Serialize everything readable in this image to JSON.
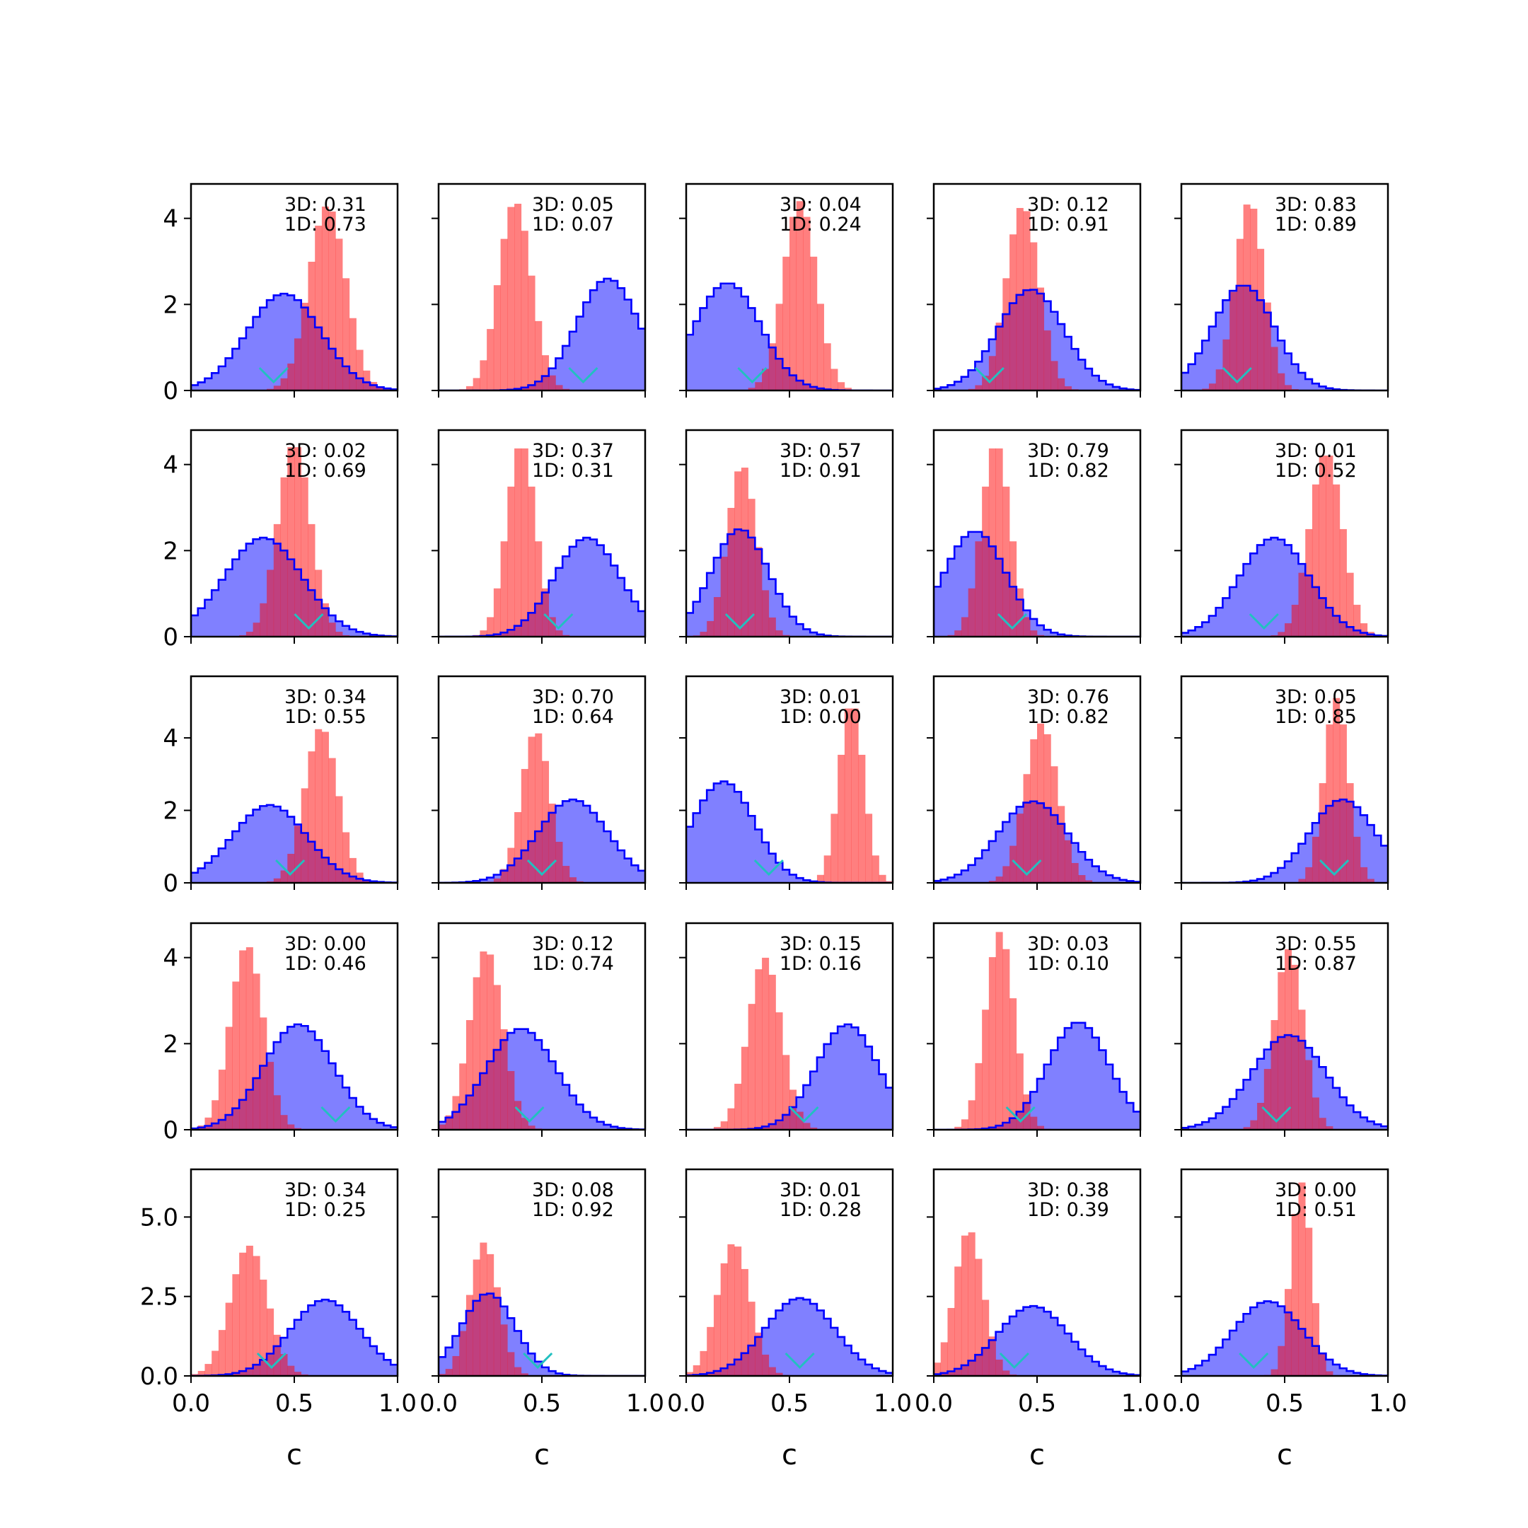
{
  "chart_data": {
    "type": "histogram-grid",
    "rows": 5,
    "cols": 5,
    "xlabel": "c",
    "xlim": [
      0.0,
      1.0
    ],
    "xticks": [
      0.0,
      0.5,
      1.0
    ],
    "xtick_labels": [
      "0.0",
      "0.5",
      "1.0"
    ],
    "row_yaxes": [
      {
        "ylim": [
          0,
          4.8
        ],
        "yticks": [
          0,
          2,
          4
        ],
        "ytick_labels": [
          "0",
          "2",
          "4"
        ]
      },
      {
        "ylim": [
          0,
          4.8
        ],
        "yticks": [
          0,
          2,
          4
        ],
        "ytick_labels": [
          "0",
          "2",
          "4"
        ]
      },
      {
        "ylim": [
          0,
          5.7
        ],
        "yticks": [
          0,
          2,
          4
        ],
        "ytick_labels": [
          "0",
          "2",
          "4"
        ]
      },
      {
        "ylim": [
          0,
          4.8
        ],
        "yticks": [
          0,
          2,
          4
        ],
        "ytick_labels": [
          "0",
          "2",
          "4"
        ]
      },
      {
        "ylim": [
          0,
          6.5
        ],
        "yticks": [
          0,
          2.5,
          5
        ],
        "ytick_labels": [
          "0.0",
          "2.5",
          "5.0"
        ]
      }
    ],
    "colors": {
      "blue_fill": "#8080ff",
      "blue_line": "#0000ff",
      "red_fill": "#ff8080",
      "marker": "#22c0c0"
    },
    "panels": [
      {
        "label3d": "3D: 0.31",
        "label1d": "1D: 0.73",
        "blue": {
          "mean": 0.45,
          "sd": 0.18,
          "peak": 2.25
        },
        "red": {
          "mean": 0.66,
          "sd": 0.09,
          "peak": 4.3
        },
        "marker": 0.4
      },
      {
        "label3d": "3D: 0.05",
        "label1d": "1D: 0.07",
        "blue": {
          "mean": 0.82,
          "sd": 0.15,
          "peak": 2.6
        },
        "red": {
          "mean": 0.37,
          "sd": 0.08,
          "peak": 4.4
        },
        "marker": 0.7
      },
      {
        "label3d": "3D: 0.04",
        "label1d": "1D: 0.24",
        "blue": {
          "mean": 0.2,
          "sd": 0.16,
          "peak": 2.5
        },
        "red": {
          "mean": 0.55,
          "sd": 0.08,
          "peak": 4.4
        },
        "marker": 0.32
      },
      {
        "label3d": "3D: 0.12",
        "label1d": "1D: 0.91",
        "blue": {
          "mean": 0.47,
          "sd": 0.16,
          "peak": 2.35
        },
        "red": {
          "mean": 0.43,
          "sd": 0.08,
          "peak": 4.3
        },
        "marker": 0.27
      },
      {
        "label3d": "3D: 0.83",
        "label1d": "1D: 0.89",
        "blue": {
          "mean": 0.3,
          "sd": 0.15,
          "peak": 2.45
        },
        "red": {
          "mean": 0.33,
          "sd": 0.07,
          "peak": 4.4
        },
        "marker": 0.27
      },
      {
        "label3d": "3D: 0.02",
        "label1d": "1D: 0.69",
        "blue": {
          "mean": 0.35,
          "sd": 0.19,
          "peak": 2.3
        },
        "red": {
          "mean": 0.5,
          "sd": 0.08,
          "peak": 4.5
        },
        "marker": 0.57
      },
      {
        "label3d": "3D: 0.37",
        "label1d": "1D: 0.31",
        "blue": {
          "mean": 0.72,
          "sd": 0.16,
          "peak": 2.3
        },
        "red": {
          "mean": 0.4,
          "sd": 0.07,
          "peak": 4.5
        },
        "marker": 0.58
      },
      {
        "label3d": "3D: 0.57",
        "label1d": "1D: 0.91",
        "blue": {
          "mean": 0.26,
          "sd": 0.14,
          "peak": 2.5
        },
        "red": {
          "mean": 0.27,
          "sd": 0.07,
          "peak": 4.0
        },
        "marker": 0.26
      },
      {
        "label3d": "3D: 0.79",
        "label1d": "1D: 0.82",
        "blue": {
          "mean": 0.2,
          "sd": 0.15,
          "peak": 2.45
        },
        "red": {
          "mean": 0.3,
          "sd": 0.07,
          "peak": 4.5
        },
        "marker": 0.38
      },
      {
        "label3d": "3D: 0.01",
        "label1d": "1D: 0.52",
        "blue": {
          "mean": 0.45,
          "sd": 0.17,
          "peak": 2.3
        },
        "red": {
          "mean": 0.7,
          "sd": 0.08,
          "peak": 4.3
        },
        "marker": 0.4
      },
      {
        "label3d": "3D: 0.34",
        "label1d": "1D: 0.55",
        "blue": {
          "mean": 0.38,
          "sd": 0.18,
          "peak": 2.15
        },
        "red": {
          "mean": 0.63,
          "sd": 0.08,
          "peak": 4.3
        },
        "marker": 0.48
      },
      {
        "label3d": "3D: 0.70",
        "label1d": "1D: 0.64",
        "blue": {
          "mean": 0.65,
          "sd": 0.17,
          "peak": 2.3
        },
        "red": {
          "mean": 0.47,
          "sd": 0.07,
          "peak": 4.2
        },
        "marker": 0.5
      },
      {
        "label3d": "3D: 0.01",
        "label1d": "1D: 0.00",
        "blue": {
          "mean": 0.18,
          "sd": 0.15,
          "peak": 2.8
        },
        "red": {
          "mean": 0.8,
          "sd": 0.06,
          "peak": 5.0
        },
        "marker": 0.4
      },
      {
        "label3d": "3D: 0.76",
        "label1d": "1D: 0.82",
        "blue": {
          "mean": 0.48,
          "sd": 0.17,
          "peak": 2.25
        },
        "red": {
          "mean": 0.52,
          "sd": 0.08,
          "peak": 4.4
        },
        "marker": 0.45
      },
      {
        "label3d": "3D: 0.05",
        "label1d": "1D: 0.85",
        "blue": {
          "mean": 0.78,
          "sd": 0.16,
          "peak": 2.3
        },
        "red": {
          "mean": 0.75,
          "sd": 0.06,
          "peak": 5.1
        },
        "marker": 0.74
      },
      {
        "label3d": "3D: 0.00",
        "label1d": "1D: 0.46",
        "blue": {
          "mean": 0.52,
          "sd": 0.17,
          "peak": 2.45
        },
        "red": {
          "mean": 0.27,
          "sd": 0.08,
          "peak": 4.3
        },
        "marker": 0.7
      },
      {
        "label3d": "3D: 0.12",
        "label1d": "1D: 0.74",
        "blue": {
          "mean": 0.4,
          "sd": 0.17,
          "peak": 2.35
        },
        "red": {
          "mean": 0.23,
          "sd": 0.08,
          "peak": 4.2
        },
        "marker": 0.44
      },
      {
        "label3d": "3D: 0.15",
        "label1d": "1D: 0.16",
        "blue": {
          "mean": 0.78,
          "sd": 0.15,
          "peak": 2.45
        },
        "red": {
          "mean": 0.38,
          "sd": 0.08,
          "peak": 4.0
        },
        "marker": 0.57
      },
      {
        "label3d": "3D: 0.03",
        "label1d": "1D: 0.10",
        "blue": {
          "mean": 0.7,
          "sd": 0.15,
          "peak": 2.5
        },
        "red": {
          "mean": 0.32,
          "sd": 0.07,
          "peak": 4.6
        },
        "marker": 0.42
      },
      {
        "label3d": "3D: 0.55",
        "label1d": "1D: 0.87",
        "blue": {
          "mean": 0.52,
          "sd": 0.18,
          "peak": 2.2
        },
        "red": {
          "mean": 0.52,
          "sd": 0.07,
          "peak": 4.2
        },
        "marker": 0.46
      },
      {
        "label3d": "3D: 0.34",
        "label1d": "1D: 0.25",
        "blue": {
          "mean": 0.65,
          "sd": 0.17,
          "peak": 2.4
        },
        "red": {
          "mean": 0.28,
          "sd": 0.09,
          "peak": 4.1
        },
        "marker": 0.39
      },
      {
        "label3d": "3D: 0.08",
        "label1d": "1D: 0.92",
        "blue": {
          "mean": 0.24,
          "sd": 0.13,
          "peak": 2.6
        },
        "red": {
          "mean": 0.22,
          "sd": 0.07,
          "peak": 4.2
        },
        "marker": 0.48
      },
      {
        "label3d": "3D: 0.01",
        "label1d": "1D: 0.28",
        "blue": {
          "mean": 0.55,
          "sd": 0.17,
          "peak": 2.45
        },
        "red": {
          "mean": 0.23,
          "sd": 0.08,
          "peak": 4.2
        },
        "marker": 0.55
      },
      {
        "label3d": "3D: 0.38",
        "label1d": "1D: 0.39",
        "blue": {
          "mean": 0.48,
          "sd": 0.17,
          "peak": 2.2
        },
        "red": {
          "mean": 0.17,
          "sd": 0.07,
          "peak": 4.6
        },
        "marker": 0.39
      },
      {
        "label3d": "3D: 0.00",
        "label1d": "1D: 0.51",
        "blue": {
          "mean": 0.42,
          "sd": 0.17,
          "peak": 2.35
        },
        "red": {
          "mean": 0.58,
          "sd": 0.05,
          "peak": 6.1
        },
        "marker": 0.35
      }
    ]
  }
}
